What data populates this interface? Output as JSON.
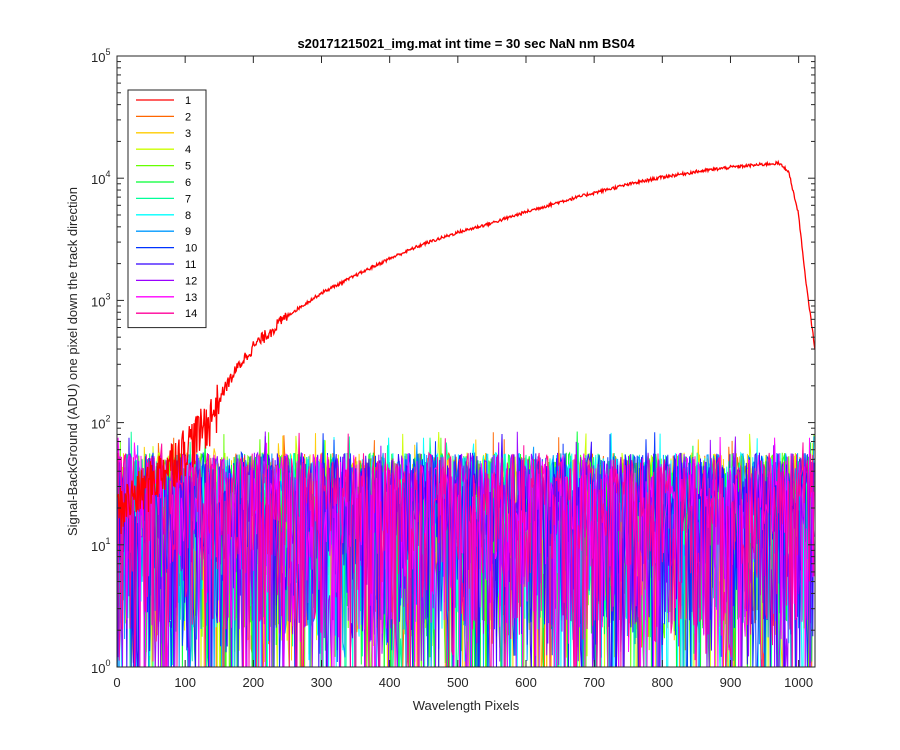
{
  "chart_data": {
    "type": "line",
    "title": "s20171215021_img.mat int time = 30 sec  NaN nm BS04",
    "xlabel": "Wavelength Pixels",
    "ylabel": "Signal-BackGround (ADU) one pixel down the track direction",
    "xlim": [
      0,
      1024
    ],
    "ylim": [
      1,
      100000
    ],
    "yscale": "log",
    "grid": false,
    "legend_position": "top-left",
    "x_ticks": [
      "0",
      "100",
      "200",
      "300",
      "400",
      "500",
      "600",
      "700",
      "800",
      "900",
      "1000"
    ],
    "y_ticks": [
      {
        "base": "10",
        "exp": "0"
      },
      {
        "base": "10",
        "exp": "1"
      },
      {
        "base": "10",
        "exp": "2"
      },
      {
        "base": "10",
        "exp": "3"
      },
      {
        "base": "10",
        "exp": "4"
      },
      {
        "base": "10",
        "exp": "5"
      }
    ],
    "series": [
      {
        "name": "1",
        "color": "#ff0000",
        "x": [
          0,
          40,
          80,
          100,
          120,
          140,
          160,
          180,
          200,
          250,
          300,
          350,
          400,
          450,
          500,
          550,
          600,
          650,
          700,
          750,
          800,
          850,
          900,
          950,
          970,
          985,
          1000,
          1010,
          1024
        ],
        "y": [
          20,
          30,
          50,
          65,
          85,
          120,
          200,
          300,
          420,
          750,
          1150,
          1600,
          2200,
          2900,
          3600,
          4300,
          5300,
          6400,
          7600,
          8900,
          10200,
          11300,
          12300,
          13000,
          13300,
          11500,
          5000,
          1500,
          400
        ]
      },
      {
        "name": "2",
        "color": "#ff6600",
        "noise": true
      },
      {
        "name": "3",
        "color": "#ffcc00",
        "noise": true
      },
      {
        "name": "4",
        "color": "#ccff00",
        "noise": true
      },
      {
        "name": "5",
        "color": "#66ff00",
        "noise": true
      },
      {
        "name": "6",
        "color": "#00ff33",
        "noise": true
      },
      {
        "name": "7",
        "color": "#00ff99",
        "noise": true
      },
      {
        "name": "8",
        "color": "#00ffff",
        "noise": true
      },
      {
        "name": "9",
        "color": "#0099ff",
        "noise": true
      },
      {
        "name": "10",
        "color": "#0033ff",
        "noise": true
      },
      {
        "name": "11",
        "color": "#3300ff",
        "noise": true
      },
      {
        "name": "12",
        "color": "#9900ff",
        "noise": true
      },
      {
        "name": "13",
        "color": "#ff00ff",
        "noise": true
      },
      {
        "name": "14",
        "color": "#ff0099",
        "noise": true
      }
    ]
  }
}
